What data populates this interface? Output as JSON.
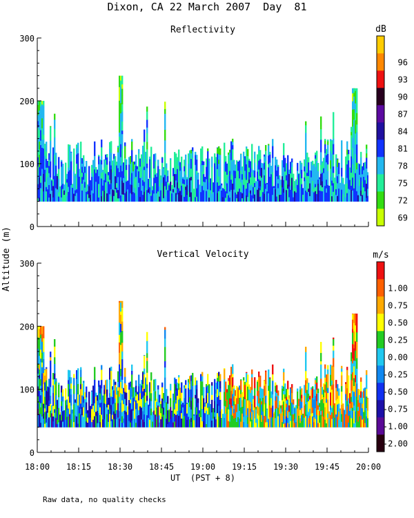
{
  "figure": {
    "title": "Dixon, CA 22 March 2007  Day  81",
    "ylabel": "Altitude (m)",
    "xlabel": "UT  (PST + 8)",
    "footnote": "Raw data, no quality checks"
  },
  "chart_data": [
    {
      "type": "heatmap",
      "title": "Reflectivity",
      "xlabel": "UT  (PST + 8)",
      "ylabel": "Altitude (m)",
      "x_range": [
        "18:00",
        "20:00"
      ],
      "x_ticks": [
        "18:00",
        "18:15",
        "18:30",
        "18:45",
        "19:00",
        "19:15",
        "19:30",
        "19:45",
        "20:00"
      ],
      "ylim": [
        0,
        300
      ],
      "y_ticks": [
        0,
        100,
        200,
        300
      ],
      "colorbar": {
        "unit": "dB",
        "labels": [
          "69",
          "72",
          "75",
          "78",
          "81",
          "84",
          "87",
          "90",
          "93",
          "96"
        ],
        "colors": [
          "#c8ff00",
          "#33dd11",
          "#22ee99",
          "#22b8f0",
          "#1133ff",
          "#2010a0",
          "#5c0aa0",
          "#28001e",
          "#ee1111",
          "#ff8800",
          "#ffcc00"
        ]
      },
      "echo_base_m": 40,
      "echo_top_typical_m": [
        100,
        140
      ],
      "echo_top_max_m": 240
    },
    {
      "type": "heatmap",
      "title": "Vertical Velocity",
      "xlabel": "UT  (PST + 8)",
      "ylabel": "Altitude (m)",
      "x_range": [
        "18:00",
        "20:00"
      ],
      "x_ticks": [
        "18:00",
        "18:15",
        "18:30",
        "18:45",
        "19:00",
        "19:15",
        "19:30",
        "19:45",
        "20:00"
      ],
      "ylim": [
        0,
        300
      ],
      "y_ticks": [
        0,
        100,
        200,
        300
      ],
      "colorbar": {
        "unit": "m/s",
        "labels": [
          "-2.00",
          "-1.00",
          "-0.75",
          "-0.50",
          "-0.25",
          "0.00",
          "0.25",
          "0.50",
          "0.75",
          "1.00"
        ],
        "colors": [
          "#280010",
          "#5a0a96",
          "#1c10a8",
          "#1030f0",
          "#1088f0",
          "#20c8f0",
          "#22cc22",
          "#ffff00",
          "#ffaa00",
          "#ff6000",
          "#ee1111"
        ]
      },
      "echo_base_m": 40,
      "echo_top_typical_m": [
        100,
        140
      ],
      "echo_top_max_m": 240
    }
  ]
}
